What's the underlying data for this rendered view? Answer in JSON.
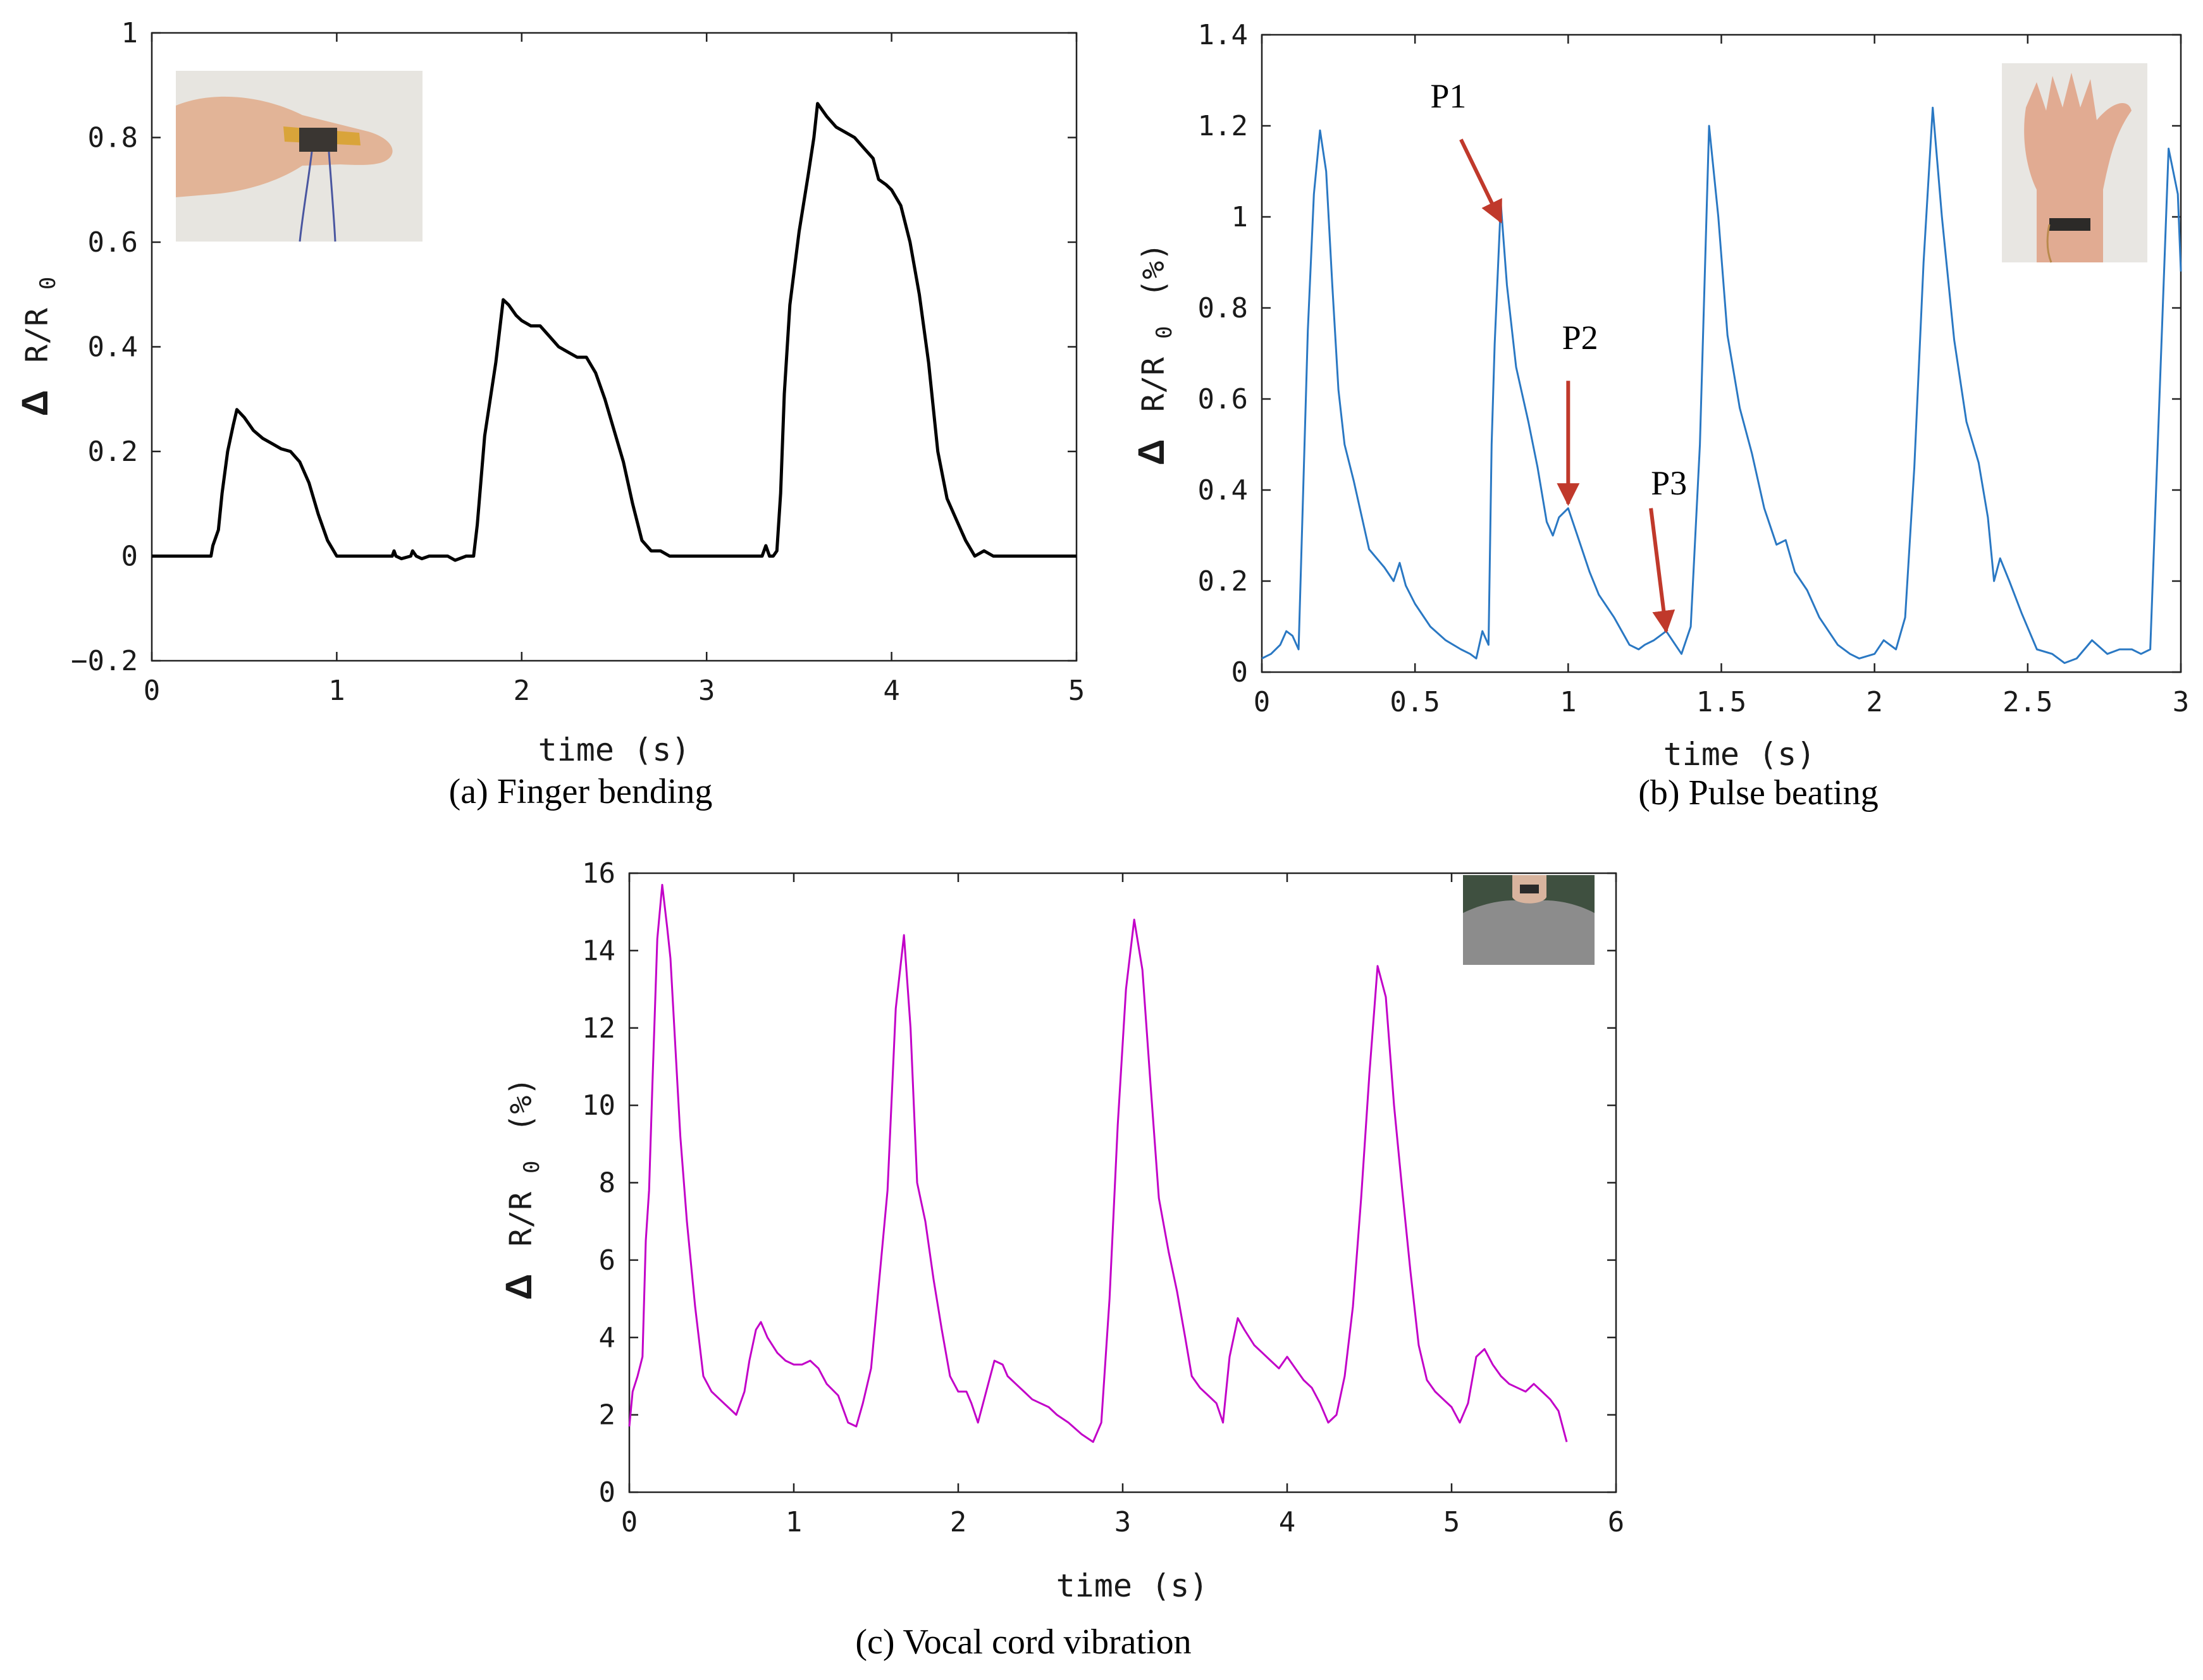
{
  "figure": {
    "colors": {
      "black": "#000000",
      "blue": "#2a78c3",
      "magenta": "#c200c8",
      "arrow": "#c0392b",
      "photo_bg": "#e4e2dd",
      "skin": "#e3b59a",
      "shirt": "#8a8a8a"
    }
  },
  "chart_data": [
    {
      "id": "a",
      "type": "line",
      "caption": "(a) Finger bending",
      "xlabel": "time (s)",
      "ylabel_delta": "Δ",
      "ylabel_main": "R/R",
      "ylabel_sub": "0",
      "ylabel_unit": "",
      "xlim": [
        0,
        5
      ],
      "ylim": [
        -0.2,
        1
      ],
      "xticks": [
        0,
        1,
        2,
        3,
        4,
        5
      ],
      "xtick_labels": [
        "0",
        "1",
        "2",
        "3",
        "4",
        "5"
      ],
      "yticks": [
        -0.2,
        0,
        0.2,
        0.4,
        0.6,
        0.8,
        1
      ],
      "ytick_labels": [
        "−0.2",
        "0",
        "0.2",
        "0.4",
        "0.6",
        "0.8",
        "1"
      ],
      "inset": "finger-photo",
      "series": [
        {
          "name": "finger",
          "color": "#000000",
          "x": [
            0,
            0.32,
            0.33,
            0.36,
            0.38,
            0.41,
            0.44,
            0.46,
            0.5,
            0.55,
            0.6,
            0.65,
            0.7,
            0.75,
            0.8,
            0.85,
            0.9,
            0.95,
            1.0,
            1.05,
            1.1,
            1.2,
            1.3,
            1.31,
            1.32,
            1.35,
            1.4,
            1.41,
            1.43,
            1.46,
            1.5,
            1.55,
            1.6,
            1.64,
            1.7,
            1.74,
            1.76,
            1.8,
            1.86,
            1.9,
            1.93,
            1.97,
            2.0,
            2.05,
            2.1,
            2.15,
            2.2,
            2.25,
            2.3,
            2.35,
            2.4,
            2.45,
            2.5,
            2.55,
            2.6,
            2.65,
            2.7,
            2.75,
            2.8,
            2.9,
            3.0,
            3.1,
            3.2,
            3.3,
            3.32,
            3.34,
            3.36,
            3.38,
            3.4,
            3.42,
            3.45,
            3.5,
            3.55,
            3.58,
            3.6,
            3.65,
            3.7,
            3.75,
            3.8,
            3.85,
            3.9,
            3.93,
            3.97,
            4.0,
            4.05,
            4.1,
            4.15,
            4.2,
            4.25,
            4.3,
            4.35,
            4.4,
            4.45,
            4.5,
            4.55,
            4.6,
            4.65,
            4.7,
            4.73,
            4.76,
            4.8,
            4.9,
            5.0
          ],
          "y": [
            0,
            0,
            0.02,
            0.05,
            0.12,
            0.2,
            0.25,
            0.28,
            0.265,
            0.24,
            0.225,
            0.215,
            0.205,
            0.2,
            0.18,
            0.14,
            0.08,
            0.03,
            0.0,
            0.0,
            0.0,
            0.0,
            0.0,
            0.01,
            0.0,
            -0.005,
            0.0,
            0.01,
            0.0,
            -0.005,
            0.0,
            0.0,
            0.0,
            -0.008,
            0.0,
            0.0,
            0.06,
            0.23,
            0.37,
            0.49,
            0.48,
            0.46,
            0.45,
            0.44,
            0.44,
            0.42,
            0.4,
            0.39,
            0.38,
            0.38,
            0.35,
            0.3,
            0.24,
            0.18,
            0.1,
            0.03,
            0.01,
            0.01,
            0.0,
            0.0,
            0.0,
            0.0,
            0.0,
            0.0,
            0.02,
            0.0,
            0.0,
            0.01,
            0.12,
            0.31,
            0.48,
            0.62,
            0.73,
            0.8,
            0.865,
            0.84,
            0.82,
            0.81,
            0.8,
            0.78,
            0.76,
            0.72,
            0.71,
            0.7,
            0.67,
            0.6,
            0.5,
            0.37,
            0.2,
            0.11,
            0.07,
            0.03,
            0.0,
            0.01,
            0.0,
            0.0,
            0.0,
            0.0,
            0.0,
            0.0,
            0.0,
            0.0,
            0.0
          ]
        }
      ]
    },
    {
      "id": "b",
      "type": "line",
      "caption": "(b) Pulse beating",
      "xlabel": "time (s)",
      "ylabel_delta": "Δ",
      "ylabel_main": "R/R",
      "ylabel_sub": "0",
      "ylabel_unit": "(%)",
      "xlim": [
        0,
        3
      ],
      "ylim": [
        0,
        1.4
      ],
      "xticks": [
        0,
        0.5,
        1,
        1.5,
        2,
        2.5,
        3
      ],
      "xtick_labels": [
        "0",
        "0.5",
        "1",
        "1.5",
        "2",
        "2.5",
        "3"
      ],
      "yticks": [
        0,
        0.2,
        0.4,
        0.6,
        0.8,
        1,
        1.2,
        1.4
      ],
      "ytick_labels": [
        "0",
        "0.2",
        "0.4",
        "0.6",
        "0.8",
        "1",
        "1.2",
        "1.4"
      ],
      "inset": "wrist-photo",
      "annotations": [
        {
          "text": "P1",
          "text_x": 0.55,
          "text_y": 1.24,
          "arrow_from": [
            0.65,
            1.17
          ],
          "arrow_to": [
            0.78,
            0.99
          ]
        },
        {
          "text": "P2",
          "text_x": 0.98,
          "text_y": 0.71,
          "arrow_from": [
            1.0,
            0.64
          ],
          "arrow_to": [
            1.0,
            0.37
          ]
        },
        {
          "text": "P3",
          "text_x": 1.27,
          "text_y": 0.39,
          "arrow_from": [
            1.27,
            0.36
          ],
          "arrow_to": [
            1.32,
            0.09
          ]
        }
      ],
      "series": [
        {
          "name": "pulse",
          "color": "#2a78c3",
          "x": [
            0,
            0.03,
            0.06,
            0.08,
            0.1,
            0.12,
            0.15,
            0.17,
            0.19,
            0.21,
            0.23,
            0.25,
            0.27,
            0.3,
            0.35,
            0.4,
            0.43,
            0.45,
            0.47,
            0.5,
            0.55,
            0.6,
            0.65,
            0.68,
            0.7,
            0.72,
            0.74,
            0.75,
            0.76,
            0.78,
            0.8,
            0.83,
            0.87,
            0.9,
            0.93,
            0.95,
            0.97,
            1.0,
            1.03,
            1.07,
            1.1,
            1.15,
            1.2,
            1.23,
            1.25,
            1.28,
            1.3,
            1.32,
            1.35,
            1.37,
            1.4,
            1.43,
            1.46,
            1.49,
            1.52,
            1.56,
            1.6,
            1.64,
            1.68,
            1.71,
            1.74,
            1.78,
            1.82,
            1.88,
            1.92,
            1.95,
            2.0,
            2.03,
            2.07,
            2.1,
            2.13,
            2.16,
            2.19,
            2.22,
            2.26,
            2.3,
            2.34,
            2.37,
            2.39,
            2.41,
            2.44,
            2.48,
            2.53,
            2.58,
            2.62,
            2.66,
            2.71,
            2.76,
            2.8,
            2.84,
            2.87,
            2.9,
            2.93,
            2.96,
            2.99,
            3.0
          ],
          "y": [
            0.03,
            0.04,
            0.06,
            0.09,
            0.08,
            0.05,
            0.75,
            1.05,
            1.19,
            1.1,
            0.85,
            0.62,
            0.5,
            0.42,
            0.27,
            0.23,
            0.2,
            0.24,
            0.19,
            0.15,
            0.1,
            0.07,
            0.05,
            0.04,
            0.03,
            0.09,
            0.06,
            0.5,
            0.72,
            1.03,
            0.85,
            0.67,
            0.55,
            0.45,
            0.33,
            0.3,
            0.34,
            0.36,
            0.3,
            0.22,
            0.17,
            0.12,
            0.06,
            0.05,
            0.06,
            0.07,
            0.08,
            0.09,
            0.06,
            0.04,
            0.1,
            0.5,
            1.2,
            1.0,
            0.74,
            0.58,
            0.48,
            0.36,
            0.28,
            0.29,
            0.22,
            0.18,
            0.12,
            0.06,
            0.04,
            0.03,
            0.04,
            0.07,
            0.05,
            0.12,
            0.45,
            0.9,
            1.24,
            1.0,
            0.73,
            0.55,
            0.46,
            0.34,
            0.2,
            0.25,
            0.2,
            0.13,
            0.05,
            0.04,
            0.02,
            0.03,
            0.07,
            0.04,
            0.05,
            0.05,
            0.04,
            0.05,
            0.6,
            1.15,
            1.05,
            0.88
          ]
        }
      ]
    },
    {
      "id": "c",
      "type": "line",
      "caption": "(c) Vocal cord vibration",
      "xlabel": "time (s)",
      "ylabel_delta": "Δ",
      "ylabel_main": "R/R",
      "ylabel_sub": "0",
      "ylabel_unit": "(%)",
      "xlim": [
        0,
        6
      ],
      "ylim": [
        0,
        16
      ],
      "xticks": [
        0,
        1,
        2,
        3,
        4,
        5,
        6
      ],
      "xtick_labels": [
        "0",
        "1",
        "2",
        "3",
        "4",
        "5",
        "6"
      ],
      "yticks": [
        0,
        2,
        4,
        6,
        8,
        10,
        12,
        14,
        16
      ],
      "ytick_labels": [
        "0",
        "2",
        "4",
        "6",
        "8",
        "10",
        "12",
        "14",
        "16"
      ],
      "inset": "person-photo",
      "series": [
        {
          "name": "vocal",
          "color": "#c200c8",
          "x": [
            0,
            0.02,
            0.05,
            0.08,
            0.1,
            0.12,
            0.14,
            0.17,
            0.2,
            0.23,
            0.25,
            0.28,
            0.31,
            0.35,
            0.4,
            0.45,
            0.5,
            0.55,
            0.6,
            0.65,
            0.7,
            0.73,
            0.77,
            0.8,
            0.84,
            0.9,
            0.95,
            1.0,
            1.05,
            1.1,
            1.15,
            1.2,
            1.27,
            1.33,
            1.38,
            1.42,
            1.47,
            1.52,
            1.57,
            1.62,
            1.67,
            1.71,
            1.75,
            1.8,
            1.85,
            1.9,
            1.95,
            2.0,
            2.05,
            2.08,
            2.12,
            2.17,
            2.22,
            2.27,
            2.3,
            2.35,
            2.4,
            2.45,
            2.5,
            2.55,
            2.6,
            2.67,
            2.75,
            2.82,
            2.87,
            2.92,
            2.97,
            3.02,
            3.07,
            3.12,
            3.17,
            3.22,
            3.28,
            3.33,
            3.38,
            3.42,
            3.47,
            3.52,
            3.57,
            3.61,
            3.65,
            3.7,
            3.74,
            3.8,
            3.85,
            3.9,
            3.95,
            4.0,
            4.05,
            4.1,
            4.15,
            4.2,
            4.25,
            4.3,
            4.35,
            4.4,
            4.45,
            4.5,
            4.55,
            4.6,
            4.65,
            4.7,
            4.75,
            4.8,
            4.85,
            4.9,
            4.95,
            5.0,
            5.05,
            5.1,
            5.15,
            5.2,
            5.25,
            5.3,
            5.35,
            5.4,
            5.45,
            5.5,
            5.55,
            5.6,
            5.65,
            5.7
          ],
          "y": [
            1.7,
            2.6,
            3.0,
            3.5,
            6.5,
            7.8,
            10.5,
            14.3,
            15.7,
            14.6,
            13.8,
            11.5,
            9.2,
            7.0,
            4.8,
            3.0,
            2.6,
            2.4,
            2.2,
            2.0,
            2.6,
            3.4,
            4.2,
            4.4,
            4.0,
            3.6,
            3.4,
            3.3,
            3.3,
            3.4,
            3.2,
            2.8,
            2.5,
            1.8,
            1.7,
            2.3,
            3.2,
            5.5,
            7.8,
            12.5,
            14.4,
            12.0,
            8.0,
            7.0,
            5.5,
            4.2,
            3.0,
            2.6,
            2.6,
            2.3,
            1.8,
            2.6,
            3.4,
            3.3,
            3.0,
            2.8,
            2.6,
            2.4,
            2.3,
            2.2,
            2.0,
            1.8,
            1.5,
            1.3,
            1.8,
            5.0,
            9.5,
            13.0,
            14.8,
            13.5,
            10.5,
            7.6,
            6.2,
            5.2,
            4.0,
            3.0,
            2.7,
            2.5,
            2.3,
            1.8,
            3.5,
            4.5,
            4.2,
            3.8,
            3.6,
            3.4,
            3.2,
            3.5,
            3.2,
            2.9,
            2.7,
            2.3,
            1.8,
            2.0,
            3.0,
            4.8,
            7.6,
            10.8,
            13.6,
            12.8,
            10.0,
            7.8,
            5.7,
            3.8,
            2.9,
            2.6,
            2.4,
            2.2,
            1.8,
            2.3,
            3.5,
            3.7,
            3.3,
            3.0,
            2.8,
            2.7,
            2.6,
            2.8,
            2.6,
            2.4,
            2.1,
            1.3
          ]
        }
      ]
    }
  ]
}
